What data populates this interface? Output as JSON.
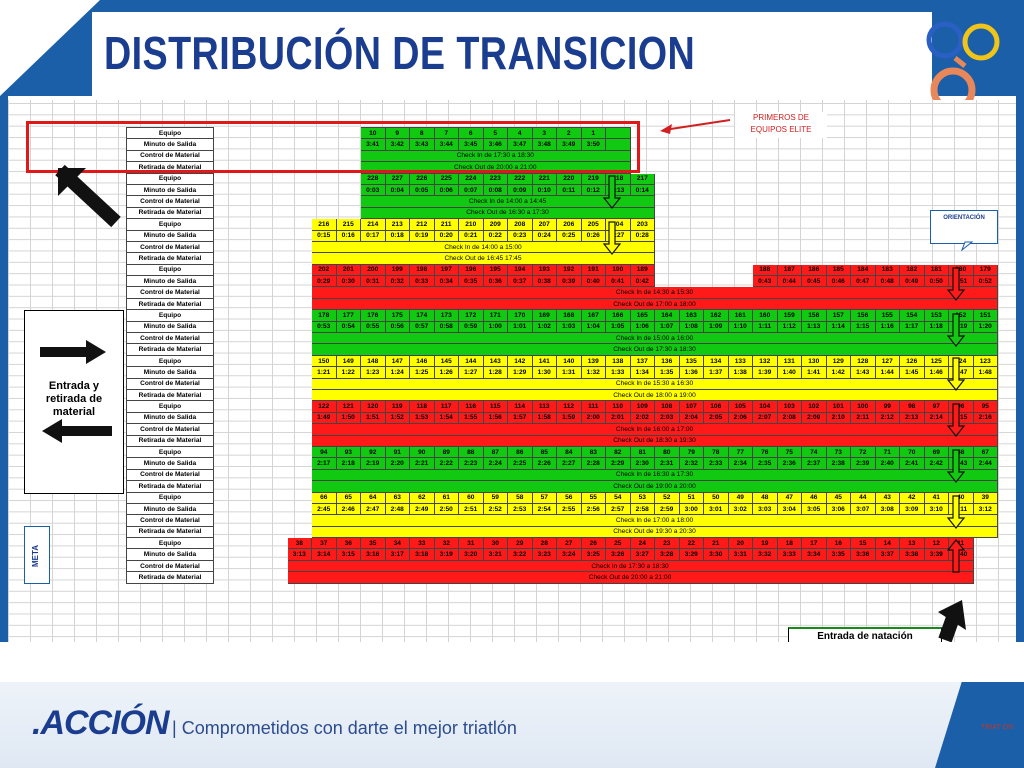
{
  "title": "DISTRIBUCIÓN DE TRANSICION",
  "footer": {
    "brand": ".ACCIÓN",
    "separator": "|",
    "slogan": "Comprometidos con darte el mejor triatlón",
    "brand_small": "TRIAT ON"
  },
  "annotations": {
    "callout": "PRIMEROS DE\nEQUIPOS ELITE",
    "orientation": "ORIENTACIÓN",
    "entrada": "Entrada y retirada de material",
    "meta": "META",
    "natacion": "Entrada de natación"
  },
  "row_labels": {
    "equipo": "Equipo",
    "minuto": "Minuto de Salida",
    "control": "Control de Material",
    "retirada": "Retirada de Material"
  },
  "colors": {
    "green": "#12c912",
    "yellow": "#ffff00",
    "red": "#ff1a1a",
    "brand_blue": "#1b3d8f"
  },
  "blocks": [
    {
      "color": "g",
      "lead": 6,
      "teams": [
        "10",
        "9",
        "8",
        "7",
        "6",
        "5",
        "4",
        "3",
        "2",
        "1"
      ],
      "times": [
        "3:41",
        "3:42",
        "3:43",
        "3:44",
        "3:45",
        "3:46",
        "3:47",
        "3:48",
        "3:49",
        "3:50"
      ],
      "control": "Check In de 17:30 a 18:30",
      "retirada": "Check Out de 20:00 a 21:00",
      "extra": 1,
      "arrow": "down-green"
    },
    {
      "color": "g",
      "lead": 6,
      "teams": [
        "228",
        "227",
        "226",
        "225",
        "224",
        "223",
        "222",
        "221",
        "220",
        "219",
        "218",
        "217"
      ],
      "times": [
        "0:03",
        "0:04",
        "0:05",
        "0:06",
        "0:07",
        "0:08",
        "0:09",
        "0:10",
        "0:11",
        "0:12",
        "0:13",
        "0:14"
      ],
      "control": "Check In de 14:00 a 14:45",
      "retirada": "Check Out de 16:30 a 17:30",
      "extra": 0,
      "arrow": "down-yellow"
    },
    {
      "color": "y",
      "lead": 4,
      "teams": [
        "216",
        "215",
        "214",
        "213",
        "212",
        "211",
        "210",
        "209",
        "208",
        "207",
        "206",
        "205",
        "204",
        "203"
      ],
      "times": [
        "0:15",
        "0:16",
        "0:17",
        "0:18",
        "0:19",
        "0:20",
        "0:21",
        "0:22",
        "0:23",
        "0:24",
        "0:25",
        "0:26",
        "0:27",
        "0:28"
      ],
      "control": "Check In de 14:00 a 15:00",
      "retirada": "Check Out de 16:45 17:45",
      "extra": 0
    },
    {
      "color": "r",
      "lead": 4,
      "teams": [
        "202",
        "201",
        "200",
        "199",
        "198",
        "197",
        "196",
        "195",
        "194",
        "193",
        "192",
        "191",
        "190",
        "189"
      ],
      "times": [
        "0:29",
        "0:30",
        "0:31",
        "0:32",
        "0:33",
        "0:34",
        "0:35",
        "0:36",
        "0:37",
        "0:38",
        "0:39",
        "0:40",
        "0:41",
        "0:42"
      ],
      "teams2": [
        "188",
        "187",
        "186",
        "185",
        "184",
        "183",
        "182",
        "181",
        "180",
        "179"
      ],
      "times2": [
        "0:43",
        "0:44",
        "0:45",
        "0:46",
        "0:47",
        "0:48",
        "0:49",
        "0:50",
        "0:51",
        "0:52"
      ],
      "control": "Check In de 14:30 a 15:30",
      "retirada": "Check Out de 17:00 a 18:00",
      "arrow": "down-red"
    },
    {
      "color": "g",
      "lead": 4,
      "teams": [
        "178",
        "177",
        "176",
        "175",
        "174",
        "173",
        "172",
        "171",
        "170",
        "169",
        "168",
        "167",
        "166",
        "165",
        "164",
        "163",
        "162",
        "161",
        "160",
        "159",
        "158",
        "157",
        "156",
        "155",
        "154",
        "153",
        "152",
        "151"
      ],
      "times": [
        "0:53",
        "0:54",
        "0:55",
        "0:56",
        "0:57",
        "0:58",
        "0:59",
        "1:00",
        "1:01",
        "1:02",
        "1:03",
        "1:04",
        "1:05",
        "1:06",
        "1:07",
        "1:08",
        "1:09",
        "1:10",
        "1:11",
        "1:12",
        "1:13",
        "1:14",
        "1:15",
        "1:16",
        "1:17",
        "1:18",
        "1:19",
        "1:20"
      ],
      "control": "Check In de 15:00 a 16:00",
      "retirada": "Check Out de 17:30 a 18:30",
      "arrow": "down-green"
    },
    {
      "color": "y",
      "lead": 4,
      "teams": [
        "150",
        "149",
        "148",
        "147",
        "146",
        "145",
        "144",
        "143",
        "142",
        "141",
        "140",
        "139",
        "138",
        "137",
        "136",
        "135",
        "134",
        "133",
        "132",
        "131",
        "130",
        "129",
        "128",
        "127",
        "126",
        "125",
        "124",
        "123"
      ],
      "times": [
        "1:21",
        "1:22",
        "1:23",
        "1:24",
        "1:25",
        "1:26",
        "1:27",
        "1:28",
        "1:29",
        "1:30",
        "1:31",
        "1:32",
        "1:33",
        "1:34",
        "1:35",
        "1:36",
        "1:37",
        "1:38",
        "1:39",
        "1:40",
        "1:41",
        "1:42",
        "1:43",
        "1:44",
        "1:45",
        "1:46",
        "1:47",
        "1:48"
      ],
      "control": "Check In de 15:30 a 16:30",
      "retirada": "Check Out de 18:00 a 19:00",
      "arrow": "down-yellow"
    },
    {
      "color": "r",
      "lead": 4,
      "teams": [
        "122",
        "121",
        "120",
        "119",
        "118",
        "117",
        "116",
        "115",
        "114",
        "113",
        "112",
        "111",
        "110",
        "109",
        "108",
        "107",
        "106",
        "105",
        "104",
        "103",
        "102",
        "101",
        "100",
        "99",
        "98",
        "97",
        "96",
        "95"
      ],
      "times": [
        "1:49",
        "1:50",
        "1:51",
        "1:52",
        "1:53",
        "1:54",
        "1:55",
        "1:56",
        "1:57",
        "1:58",
        "1:59",
        "2:00",
        "2:01",
        "2:02",
        "2:03",
        "2:04",
        "2:05",
        "2:06",
        "2:07",
        "2:08",
        "2:09",
        "2:10",
        "2:11",
        "2:12",
        "2:13",
        "2:14",
        "2:15",
        "2:16"
      ],
      "control": "Check In de 16:00 a 17:00",
      "retirada": "Check Out de 18:30 a 19:30",
      "arrow": "down-red"
    },
    {
      "color": "g",
      "lead": 4,
      "teams": [
        "94",
        "93",
        "92",
        "91",
        "90",
        "89",
        "88",
        "87",
        "86",
        "85",
        "84",
        "83",
        "82",
        "81",
        "80",
        "79",
        "78",
        "77",
        "76",
        "75",
        "74",
        "73",
        "72",
        "71",
        "70",
        "69",
        "68",
        "67"
      ],
      "times": [
        "2:17",
        "2:18",
        "2:19",
        "2:20",
        "2:21",
        "2:22",
        "2:23",
        "2:24",
        "2:25",
        "2:26",
        "2:27",
        "2:28",
        "2:29",
        "2:30",
        "2:31",
        "2:32",
        "2:33",
        "2:34",
        "2:35",
        "2:36",
        "2:37",
        "2:38",
        "2:39",
        "2:40",
        "2:41",
        "2:42",
        "2:43",
        "2:44"
      ],
      "control": "Check In de 16:30 a 17:30",
      "retirada": "Check Out de 19:00 a 20:00",
      "arrow": "down-green"
    },
    {
      "color": "y",
      "lead": 4,
      "teams": [
        "66",
        "65",
        "64",
        "63",
        "62",
        "61",
        "60",
        "59",
        "58",
        "57",
        "56",
        "55",
        "54",
        "53",
        "52",
        "51",
        "50",
        "49",
        "48",
        "47",
        "46",
        "45",
        "44",
        "43",
        "42",
        "41",
        "40",
        "39"
      ],
      "times": [
        "2:45",
        "2:46",
        "2:47",
        "2:48",
        "2:49",
        "2:50",
        "2:51",
        "2:52",
        "2:53",
        "2:54",
        "2:55",
        "2:56",
        "2:57",
        "2:58",
        "2:59",
        "3:00",
        "3:01",
        "3:02",
        "3:03",
        "3:04",
        "3:05",
        "3:06",
        "3:07",
        "3:08",
        "3:09",
        "3:10",
        "3:11",
        "3:12"
      ],
      "control": "Check In de 17:00 a 18:00",
      "retirada": "Check Out de 19:30 a 20:30",
      "arrow": "down-yellow"
    },
    {
      "color": "r",
      "lead": 3,
      "teams": [
        "38",
        "37",
        "36",
        "35",
        "34",
        "33",
        "32",
        "31",
        "30",
        "29",
        "28",
        "27",
        "26",
        "25",
        "24",
        "23",
        "22",
        "21",
        "20",
        "19",
        "18",
        "17",
        "16",
        "15",
        "14",
        "13",
        "12",
        "11"
      ],
      "times": [
        "3:13",
        "3:14",
        "3:15",
        "3:16",
        "3:17",
        "3:18",
        "3:19",
        "3:20",
        "3:21",
        "3:22",
        "3:23",
        "3:24",
        "3:25",
        "3:26",
        "3:27",
        "3:28",
        "3:29",
        "3:30",
        "3:31",
        "3:32",
        "3:33",
        "3:34",
        "3:35",
        "3:36",
        "3:37",
        "3:38",
        "3:39",
        "3:40"
      ],
      "control": "Check In de 17:30 a 18:30",
      "retirada": "Check Out de 20:00 a 21:00",
      "arrow": "up-red"
    }
  ]
}
